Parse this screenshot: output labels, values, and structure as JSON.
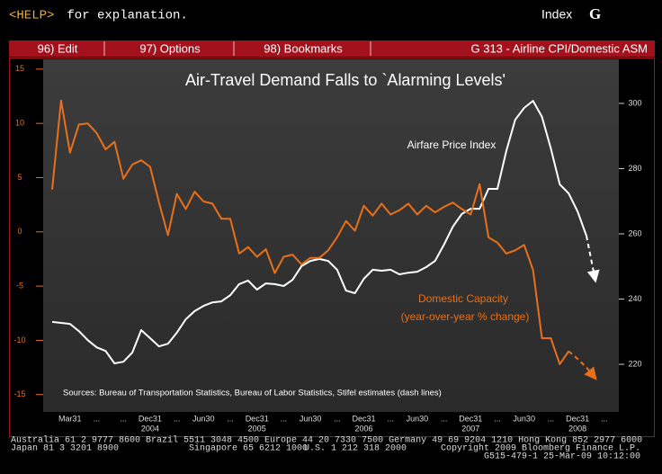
{
  "header": {
    "help_key": "<HELP>",
    "help_text": " for explanation.",
    "screen_label": "Index",
    "screen_key": "G"
  },
  "menu": {
    "items": [
      "96) Edit",
      "97) Options",
      "98) Bookmarks"
    ],
    "screen_title": "G 313 - Airline CPI/Domestic ASM"
  },
  "chart_data": {
    "type": "line",
    "title": "Air-Travel Demand Falls to `Alarming Levels'",
    "source": "Sources: Bureau of Transportation Statistics, Bureau of Labor Statistics, Stifel estimates (dash lines)",
    "annotations": [
      "(year-over-year % change)"
    ],
    "categories": [
      null,
      null,
      "Mar31",
      null,
      null,
      "...",
      null,
      null,
      "...",
      null,
      null,
      "Dec31",
      null,
      null,
      "...",
      null,
      null,
      "Jun30",
      null,
      null,
      "...",
      null,
      null,
      "Dec31",
      null,
      null,
      "...",
      null,
      null,
      "Jun30",
      null,
      null,
      "...",
      null,
      null,
      "Dec31",
      null,
      null,
      "...",
      null,
      null,
      "Jun30",
      null,
      null,
      "...",
      null,
      null,
      "Dec31",
      null,
      null,
      "...",
      null,
      null,
      "Jun30",
      null,
      null,
      "...",
      null,
      null,
      "Dec31",
      null,
      null,
      "..."
    ],
    "year_labels": [
      "2004",
      "2005",
      "2006",
      "2007",
      "2008"
    ],
    "ylim": [
      -16.6,
      15.9
    ],
    "yticks": [
      15,
      10,
      5,
      0,
      -5,
      -10,
      -15
    ],
    "y2lim": [
      205.4,
      313.5
    ],
    "y2ticks": [
      300,
      280,
      260,
      240,
      220
    ],
    "series": [
      {
        "name": "Airfare Price Index",
        "color": "#ffffff",
        "axis": "y2",
        "dashed_from": 60,
        "values": [
          233.0,
          232.7,
          232.4,
          230.2,
          227.4,
          225.2,
          224.1,
          220.3,
          220.8,
          223.6,
          230.5,
          228.0,
          225.5,
          226.3,
          229.7,
          233.8,
          236.3,
          237.9,
          239.0,
          239.3,
          241.2,
          244.6,
          245.7,
          242.9,
          244.8,
          244.6,
          244.0,
          245.9,
          250.1,
          251.7,
          252.3,
          251.7,
          249.0,
          242.6,
          241.8,
          246.2,
          249.0,
          248.7,
          249.0,
          247.6,
          248.1,
          248.4,
          249.8,
          251.7,
          256.7,
          262.2,
          266.1,
          267.7,
          267.7,
          273.8,
          273.8,
          285.4,
          295.0,
          298.6,
          300.8,
          295.9,
          286.2,
          275.2,
          272.4,
          266.9,
          259.4,
          245.7,
          null
        ]
      },
      {
        "name": "Domestic Capacity",
        "color": "#e8701a",
        "axis": "y",
        "dashed_from": 58,
        "values": [
          3.9,
          12.1,
          7.3,
          9.9,
          10.0,
          9.1,
          7.6,
          8.3,
          4.9,
          6.2,
          6.6,
          6.0,
          2.7,
          -0.3,
          3.5,
          2.1,
          3.7,
          2.8,
          2.6,
          1.2,
          1.2,
          -2.0,
          -1.4,
          -2.3,
          -1.6,
          -3.8,
          -2.3,
          -2.1,
          -3.0,
          -2.4,
          -2.4,
          -1.7,
          -0.5,
          1.0,
          0.1,
          2.4,
          1.5,
          2.6,
          1.6,
          2.0,
          2.6,
          1.6,
          2.4,
          1.8,
          2.3,
          2.7,
          2.1,
          1.6,
          4.4,
          -0.5,
          -1.0,
          -2.0,
          -1.7,
          -1.2,
          -3.5,
          -9.8,
          -9.8,
          -12.2,
          -11.0,
          -11.7,
          -12.5,
          -13.5,
          null
        ]
      }
    ]
  },
  "footer": {
    "row1": "Australia 61 2 9777 8600 Brazil 5511 3048 4500 Europe 44 20 7330 7500 Germany 49 69 9204 1210 Hong Kong 852 2977 6000",
    "row2": [
      "Japan 81 3 3201 8900",
      "Singapore 65 6212 1000",
      "U.S. 1 212 318 2000",
      "Copyright 2009 Bloomberg Finance L.P."
    ],
    "row3": "G515-479-1 25-Mar-09 10:12:00"
  }
}
